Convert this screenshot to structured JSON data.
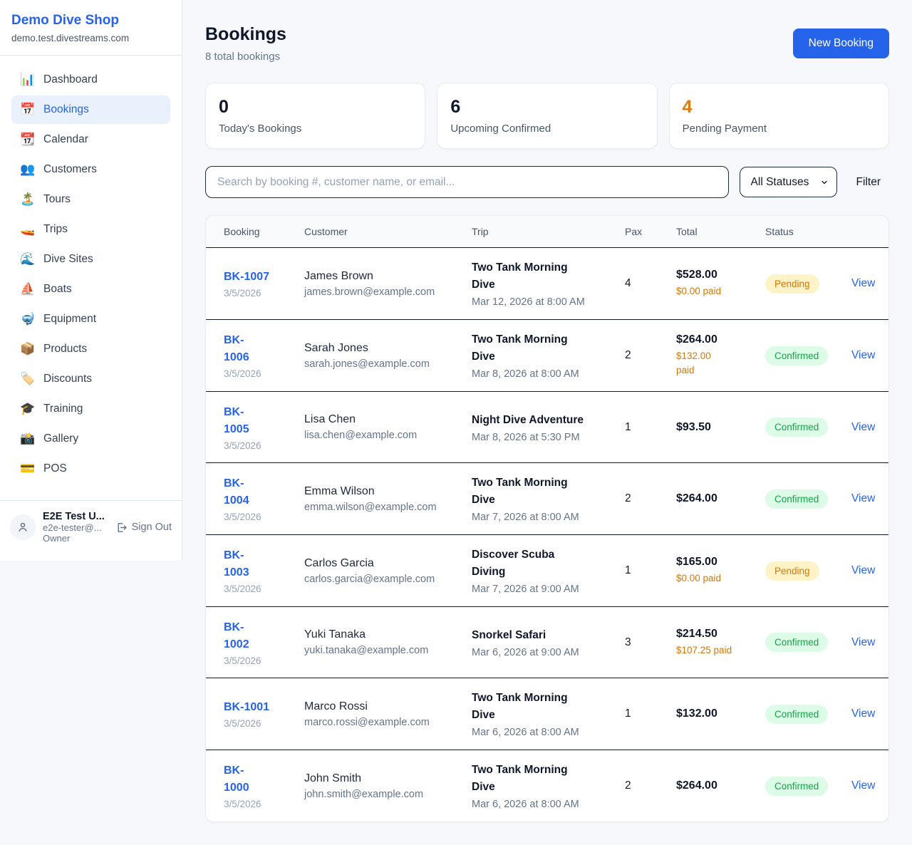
{
  "colors": {
    "accent_blue": "#2563eb",
    "pending_text": "#d97706",
    "pending_bg": "#fef3c7",
    "confirmed_text": "#16a34a",
    "confirmed_bg": "#dcfce7",
    "stat_orange": "#e07b10",
    "stat_dark": "#0f172a"
  },
  "sidebar": {
    "shop_name": "Demo Dive Shop",
    "shop_domain": "demo.test.divestreams.com",
    "items": [
      {
        "label": "Dashboard",
        "icon_name": "bar-chart-icon",
        "icon_char": "📊",
        "active": false
      },
      {
        "label": "Bookings",
        "icon_name": "calendar-icon",
        "icon_char": "📅",
        "active": true
      },
      {
        "label": "Calendar",
        "icon_name": "tear-off-calendar-icon",
        "icon_char": "📆",
        "active": false
      },
      {
        "label": "Customers",
        "icon_name": "users-icon",
        "icon_char": "👥",
        "active": false
      },
      {
        "label": "Tours",
        "icon_name": "island-icon",
        "icon_char": "🏝️",
        "active": false
      },
      {
        "label": "Trips",
        "icon_name": "speedboat-icon",
        "icon_char": "🚤",
        "active": false
      },
      {
        "label": "Dive Sites",
        "icon_name": "wave-icon",
        "icon_char": "🌊",
        "active": false
      },
      {
        "label": "Boats",
        "icon_name": "sailboat-icon",
        "icon_char": "⛵",
        "active": false
      },
      {
        "label": "Equipment",
        "icon_name": "diving-mask-icon",
        "icon_char": "🤿",
        "active": false
      },
      {
        "label": "Products",
        "icon_name": "package-icon",
        "icon_char": "📦",
        "active": false
      },
      {
        "label": "Discounts",
        "icon_name": "tag-icon",
        "icon_char": "🏷️",
        "active": false
      },
      {
        "label": "Training",
        "icon_name": "graduation-cap-icon",
        "icon_char": "🎓",
        "active": false
      },
      {
        "label": "Gallery",
        "icon_name": "camera-flash-icon",
        "icon_char": "📸",
        "active": false
      },
      {
        "label": "POS",
        "icon_name": "credit-card-icon",
        "icon_char": "💳",
        "active": false
      }
    ],
    "user": {
      "name": "E2E Test U...",
      "email": "e2e-tester@...",
      "role": "Owner",
      "sign_out_label": "Sign Out"
    }
  },
  "header": {
    "title": "Bookings",
    "subtitle": "8 total bookings",
    "new_booking_label": "New Booking"
  },
  "stats": [
    {
      "value": "0",
      "label": "Today's Bookings",
      "color": "#0f172a"
    },
    {
      "value": "6",
      "label": "Upcoming Confirmed",
      "color": "#0f172a"
    },
    {
      "value": "4",
      "label": "Pending Payment",
      "color": "#e07b10"
    }
  ],
  "filters": {
    "search_placeholder": "Search by booking #, customer name, or email...",
    "status_selected": "All Statuses",
    "filter_label": "Filter"
  },
  "table": {
    "columns": [
      "Booking",
      "Customer",
      "Trip",
      "Pax",
      "Total",
      "Status"
    ],
    "rows": [
      {
        "id": "BK-1007",
        "date": "3/5/2026",
        "customer": "James Brown",
        "email": "james.brown@example.com",
        "trip": "Two Tank Morning\nDive",
        "trip_when": "Mar 12, 2026 at 8:00 AM",
        "pax": "4",
        "total": "$528.00",
        "paid": "$0.00 paid",
        "status": "Pending",
        "action": "View"
      },
      {
        "id": "BK-\n1006",
        "date": "3/5/2026",
        "customer": "Sarah Jones",
        "email": "sarah.jones@example.com",
        "trip": "Two Tank Morning\nDive",
        "trip_when": "Mar 8, 2026 at 8:00 AM",
        "pax": "2",
        "total": "$264.00",
        "paid": "$132.00\npaid",
        "status": "Confirmed",
        "action": "View"
      },
      {
        "id": "BK-\n1005",
        "date": "3/5/2026",
        "customer": "Lisa Chen",
        "email": "lisa.chen@example.com",
        "trip": "Night Dive Adventure",
        "trip_when": "Mar 8, 2026 at 5:30 PM",
        "pax": "1",
        "total": "$93.50",
        "paid": "",
        "status": "Confirmed",
        "action": "View"
      },
      {
        "id": "BK-\n1004",
        "date": "3/5/2026",
        "customer": "Emma Wilson",
        "email": "emma.wilson@example.com",
        "trip": "Two Tank Morning\nDive",
        "trip_when": "Mar 7, 2026 at 8:00 AM",
        "pax": "2",
        "total": "$264.00",
        "paid": "",
        "status": "Confirmed",
        "action": "View"
      },
      {
        "id": "BK-\n1003",
        "date": "3/5/2026",
        "customer": "Carlos Garcia",
        "email": "carlos.garcia@example.com",
        "trip": "Discover Scuba\nDiving",
        "trip_when": "Mar 7, 2026 at 9:00 AM",
        "pax": "1",
        "total": "$165.00",
        "paid": "$0.00 paid",
        "status": "Pending",
        "action": "View"
      },
      {
        "id": "BK-\n1002",
        "date": "3/5/2026",
        "customer": "Yuki Tanaka",
        "email": "yuki.tanaka@example.com",
        "trip": "Snorkel Safari",
        "trip_when": "Mar 6, 2026 at 9:00 AM",
        "pax": "3",
        "total": "$214.50",
        "paid": "$107.25 paid",
        "status": "Confirmed",
        "action": "View"
      },
      {
        "id": "BK-1001",
        "date": "3/5/2026",
        "customer": "Marco Rossi",
        "email": "marco.rossi@example.com",
        "trip": "Two Tank Morning\nDive",
        "trip_when": "Mar 6, 2026 at 8:00 AM",
        "pax": "1",
        "total": "$132.00",
        "paid": "",
        "status": "Confirmed",
        "action": "View"
      },
      {
        "id": "BK-\n1000",
        "date": "3/5/2026",
        "customer": "John Smith",
        "email": "john.smith@example.com",
        "trip": "Two Tank Morning\nDive",
        "trip_when": "Mar 6, 2026 at 8:00 AM",
        "pax": "2",
        "total": "$264.00",
        "paid": "",
        "status": "Confirmed",
        "action": "View"
      }
    ]
  }
}
